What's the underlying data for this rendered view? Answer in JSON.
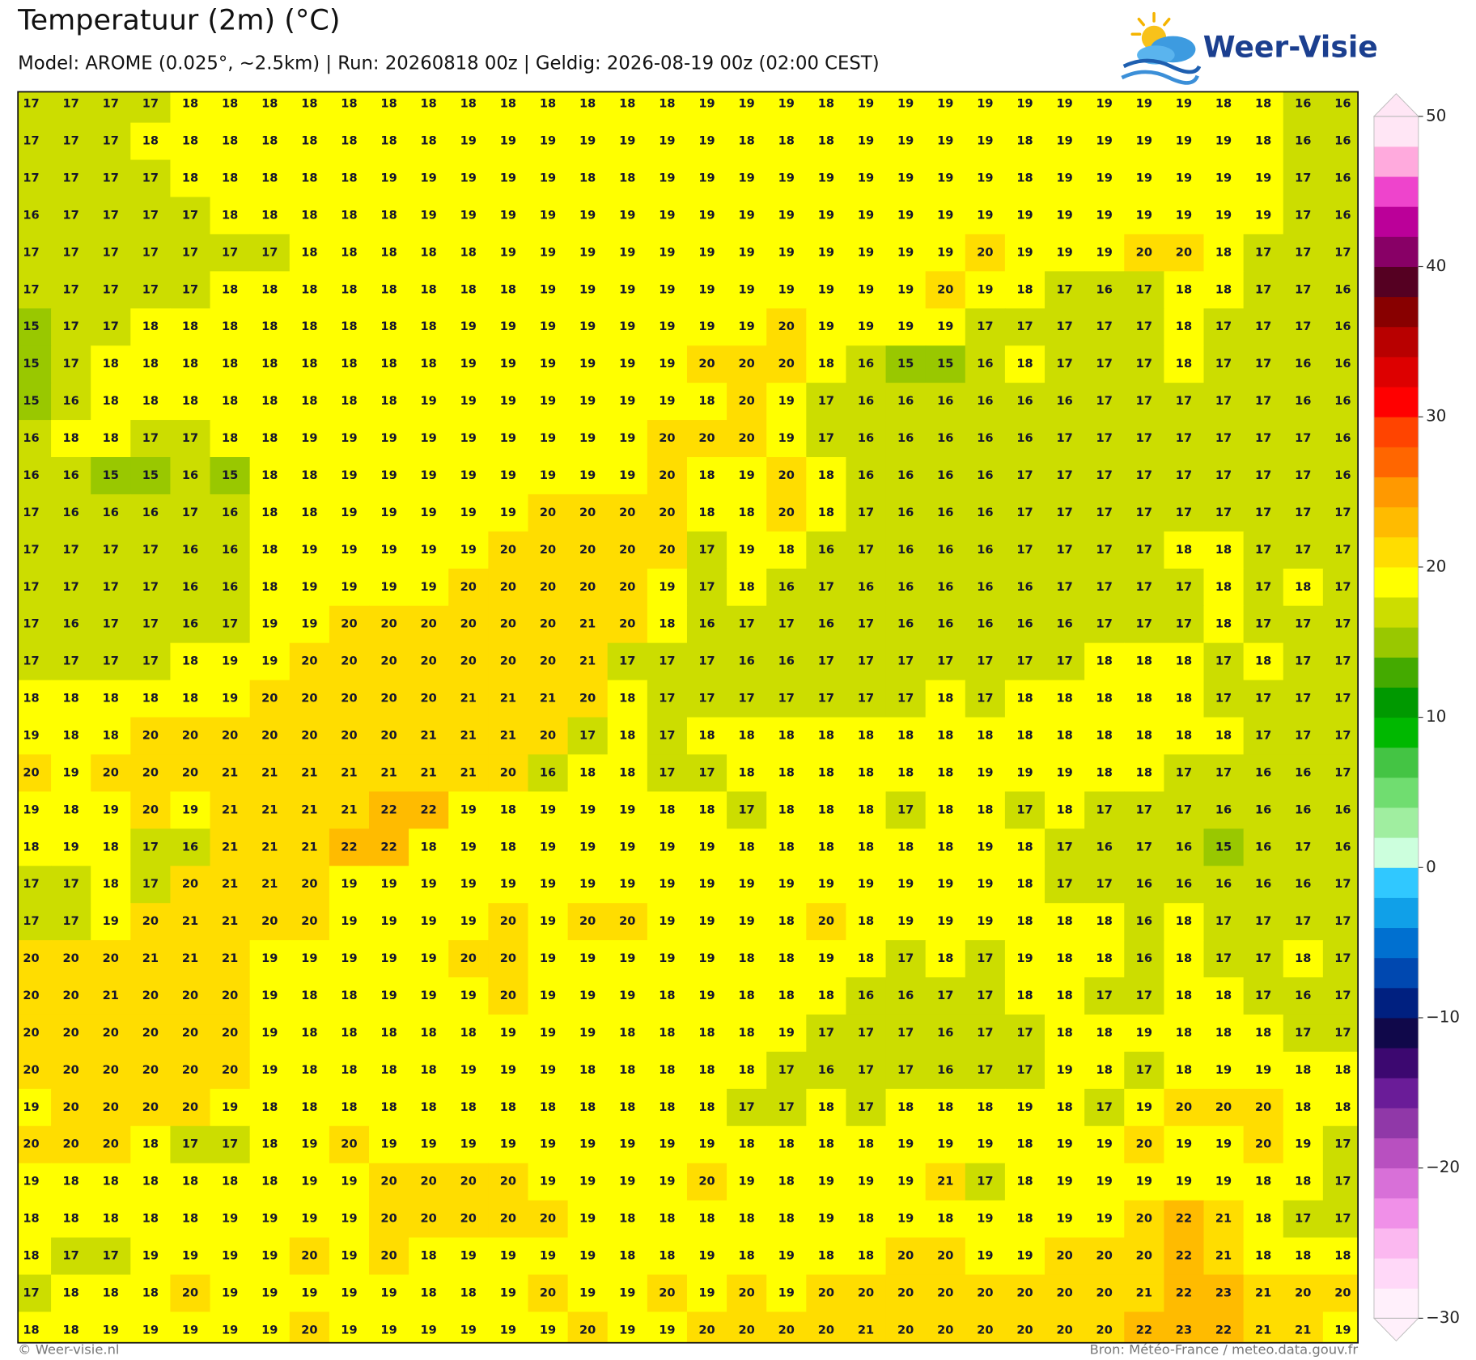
{
  "header": {
    "title": "Temperatuur (2m) (°C)",
    "subtitle": "Model: AROME (0.025°, ~2.5km)  |  Run: 20260818 00z  |  Geldig: 2026-08-19 00z (02:00 CEST)"
  },
  "logo": "Weer-Visie",
  "map": {
    "rows": [
      [
        17,
        17,
        17,
        17,
        18,
        18,
        18,
        18,
        18,
        18,
        18,
        18,
        18,
        18,
        18,
        18,
        18,
        19,
        19,
        19,
        18,
        19,
        19,
        19,
        19,
        19,
        19,
        19,
        19,
        19,
        18,
        18,
        16,
        16
      ],
      [
        17,
        17,
        17,
        18,
        18,
        18,
        18,
        18,
        18,
        18,
        18,
        19,
        19,
        19,
        19,
        19,
        19,
        19,
        18,
        18,
        18,
        19,
        19,
        19,
        19,
        18,
        19,
        19,
        19,
        19,
        19,
        18,
        16,
        16
      ],
      [
        17,
        17,
        17,
        17,
        18,
        18,
        18,
        18,
        18,
        19,
        19,
        19,
        19,
        19,
        18,
        18,
        19,
        19,
        19,
        19,
        19,
        19,
        19,
        19,
        19,
        18,
        19,
        19,
        19,
        19,
        19,
        19,
        17,
        16
      ],
      [
        16,
        17,
        17,
        17,
        17,
        18,
        18,
        18,
        18,
        18,
        19,
        19,
        19,
        19,
        19,
        19,
        19,
        19,
        19,
        19,
        19,
        19,
        19,
        19,
        19,
        19,
        19,
        19,
        19,
        19,
        19,
        19,
        17,
        16
      ],
      [
        17,
        17,
        17,
        17,
        17,
        17,
        17,
        18,
        18,
        18,
        18,
        18,
        19,
        19,
        19,
        19,
        19,
        19,
        19,
        19,
        19,
        19,
        19,
        19,
        20,
        19,
        19,
        19,
        20,
        20,
        18,
        17,
        17,
        17
      ],
      [
        17,
        17,
        17,
        17,
        17,
        18,
        18,
        18,
        18,
        18,
        18,
        18,
        18,
        19,
        19,
        19,
        19,
        19,
        19,
        19,
        19,
        19,
        19,
        20,
        19,
        18,
        17,
        16,
        17,
        18,
        18,
        17,
        17,
        16
      ],
      [
        15,
        17,
        17,
        18,
        18,
        18,
        18,
        18,
        18,
        18,
        18,
        19,
        19,
        19,
        19,
        19,
        19,
        19,
        19,
        20,
        19,
        19,
        19,
        19,
        17,
        17,
        17,
        17,
        17,
        18,
        17,
        17,
        17,
        16
      ],
      [
        15,
        17,
        18,
        18,
        18,
        18,
        18,
        18,
        18,
        18,
        18,
        19,
        19,
        19,
        19,
        19,
        19,
        20,
        20,
        20,
        18,
        16,
        15,
        15,
        16,
        18,
        17,
        17,
        17,
        18,
        17,
        17,
        16,
        16
      ],
      [
        15,
        16,
        18,
        18,
        18,
        18,
        18,
        18,
        18,
        18,
        19,
        19,
        19,
        19,
        19,
        19,
        19,
        18,
        20,
        19,
        17,
        16,
        16,
        16,
        16,
        16,
        16,
        17,
        17,
        17,
        17,
        17,
        16,
        16
      ],
      [
        16,
        18,
        18,
        17,
        17,
        18,
        18,
        19,
        19,
        19,
        19,
        19,
        19,
        19,
        19,
        19,
        20,
        20,
        20,
        19,
        17,
        16,
        16,
        16,
        16,
        16,
        17,
        17,
        17,
        17,
        17,
        17,
        17,
        16
      ],
      [
        16,
        16,
        15,
        15,
        16,
        15,
        18,
        18,
        19,
        19,
        19,
        19,
        19,
        19,
        19,
        19,
        20,
        18,
        19,
        20,
        18,
        16,
        16,
        16,
        16,
        17,
        17,
        17,
        17,
        17,
        17,
        17,
        17,
        16
      ],
      [
        17,
        16,
        16,
        16,
        17,
        16,
        18,
        18,
        19,
        19,
        19,
        19,
        19,
        20,
        20,
        20,
        20,
        18,
        18,
        20,
        18,
        17,
        16,
        16,
        16,
        17,
        17,
        17,
        17,
        17,
        17,
        17,
        17,
        17
      ],
      [
        17,
        17,
        17,
        17,
        16,
        16,
        18,
        19,
        19,
        19,
        19,
        19,
        20,
        20,
        20,
        20,
        20,
        17,
        19,
        18,
        16,
        17,
        16,
        16,
        16,
        17,
        17,
        17,
        17,
        18,
        18,
        17,
        17,
        17
      ],
      [
        17,
        17,
        17,
        17,
        16,
        16,
        18,
        19,
        19,
        19,
        19,
        20,
        20,
        20,
        20,
        20,
        19,
        17,
        18,
        16,
        17,
        16,
        16,
        16,
        16,
        16,
        17,
        17,
        17,
        17,
        18,
        17,
        18,
        17
      ],
      [
        17,
        16,
        17,
        17,
        16,
        17,
        19,
        19,
        20,
        20,
        20,
        20,
        20,
        20,
        21,
        20,
        18,
        16,
        17,
        17,
        16,
        17,
        16,
        16,
        16,
        16,
        16,
        17,
        17,
        17,
        18,
        17,
        17,
        17
      ],
      [
        17,
        17,
        17,
        17,
        18,
        19,
        19,
        20,
        20,
        20,
        20,
        20,
        20,
        20,
        21,
        17,
        17,
        17,
        16,
        16,
        17,
        17,
        17,
        17,
        17,
        17,
        17,
        18,
        18,
        18,
        17,
        18,
        17,
        17
      ],
      [
        18,
        18,
        18,
        18,
        18,
        19,
        20,
        20,
        20,
        20,
        20,
        21,
        21,
        21,
        20,
        18,
        17,
        17,
        17,
        17,
        17,
        17,
        17,
        18,
        17,
        18,
        18,
        18,
        18,
        18,
        17,
        17,
        17,
        17
      ],
      [
        19,
        18,
        18,
        20,
        20,
        20,
        20,
        20,
        20,
        20,
        21,
        21,
        21,
        20,
        17,
        18,
        17,
        18,
        18,
        18,
        18,
        18,
        18,
        18,
        18,
        18,
        18,
        18,
        18,
        18,
        18,
        17,
        17,
        17
      ],
      [
        20,
        19,
        20,
        20,
        20,
        21,
        21,
        21,
        21,
        21,
        21,
        21,
        20,
        16,
        18,
        18,
        17,
        17,
        18,
        18,
        18,
        18,
        18,
        18,
        19,
        19,
        19,
        18,
        18,
        17,
        17,
        16,
        16,
        17
      ],
      [
        19,
        18,
        19,
        20,
        19,
        21,
        21,
        21,
        21,
        22,
        22,
        19,
        18,
        19,
        19,
        19,
        18,
        18,
        17,
        18,
        18,
        18,
        17,
        18,
        18,
        17,
        18,
        17,
        17,
        17,
        16,
        16,
        16,
        16
      ],
      [
        18,
        19,
        18,
        17,
        16,
        21,
        21,
        21,
        22,
        22,
        18,
        19,
        18,
        19,
        19,
        19,
        19,
        19,
        18,
        18,
        18,
        18,
        18,
        18,
        19,
        18,
        17,
        16,
        17,
        16,
        15,
        16,
        17,
        16
      ],
      [
        17,
        17,
        18,
        17,
        20,
        21,
        21,
        20,
        19,
        19,
        19,
        19,
        19,
        19,
        19,
        19,
        19,
        19,
        19,
        19,
        19,
        19,
        19,
        19,
        19,
        18,
        17,
        17,
        16,
        16,
        16,
        16,
        16,
        17
      ],
      [
        17,
        17,
        19,
        20,
        21,
        21,
        20,
        20,
        19,
        19,
        19,
        19,
        20,
        19,
        20,
        20,
        19,
        19,
        19,
        18,
        20,
        18,
        19,
        19,
        19,
        18,
        18,
        18,
        16,
        18,
        17,
        17,
        17,
        17
      ],
      [
        20,
        20,
        20,
        21,
        21,
        21,
        19,
        19,
        19,
        19,
        19,
        20,
        20,
        19,
        19,
        19,
        19,
        19,
        18,
        18,
        19,
        18,
        17,
        18,
        17,
        19,
        18,
        18,
        16,
        18,
        17,
        17,
        18,
        17
      ],
      [
        20,
        20,
        21,
        20,
        20,
        20,
        19,
        18,
        18,
        19,
        19,
        19,
        20,
        19,
        19,
        19,
        18,
        19,
        18,
        18,
        18,
        16,
        16,
        17,
        17,
        18,
        18,
        17,
        17,
        18,
        18,
        17,
        16,
        17
      ],
      [
        20,
        20,
        20,
        20,
        20,
        20,
        19,
        18,
        18,
        18,
        18,
        18,
        19,
        19,
        19,
        18,
        18,
        18,
        18,
        19,
        17,
        17,
        17,
        16,
        17,
        17,
        18,
        18,
        19,
        18,
        18,
        18,
        17,
        17
      ],
      [
        20,
        20,
        20,
        20,
        20,
        20,
        19,
        18,
        18,
        18,
        18,
        19,
        19,
        19,
        18,
        18,
        18,
        18,
        18,
        17,
        16,
        17,
        17,
        16,
        17,
        17,
        19,
        18,
        17,
        18,
        19,
        19,
        18,
        18
      ],
      [
        19,
        20,
        20,
        20,
        20,
        19,
        18,
        18,
        18,
        18,
        18,
        18,
        18,
        18,
        18,
        18,
        18,
        18,
        17,
        17,
        18,
        17,
        18,
        18,
        18,
        19,
        18,
        17,
        19,
        20,
        20,
        20,
        18,
        18
      ],
      [
        20,
        20,
        20,
        18,
        17,
        17,
        18,
        19,
        20,
        19,
        19,
        19,
        19,
        19,
        19,
        19,
        19,
        19,
        18,
        18,
        18,
        18,
        19,
        19,
        19,
        18,
        19,
        19,
        20,
        19,
        19,
        20,
        19,
        17
      ],
      [
        19,
        18,
        18,
        18,
        18,
        18,
        18,
        19,
        19,
        20,
        20,
        20,
        20,
        19,
        19,
        19,
        19,
        20,
        19,
        18,
        19,
        19,
        19,
        21,
        17,
        18,
        19,
        19,
        19,
        19,
        19,
        18,
        18,
        17
      ],
      [
        18,
        18,
        18,
        18,
        18,
        19,
        19,
        19,
        19,
        20,
        20,
        20,
        20,
        20,
        19,
        18,
        18,
        18,
        18,
        18,
        19,
        18,
        19,
        18,
        19,
        18,
        19,
        19,
        20,
        22,
        21,
        18,
        17,
        17
      ],
      [
        18,
        17,
        17,
        19,
        19,
        19,
        19,
        20,
        19,
        20,
        18,
        19,
        19,
        19,
        19,
        18,
        18,
        19,
        18,
        19,
        18,
        18,
        20,
        20,
        19,
        19,
        20,
        20,
        20,
        22,
        21,
        18,
        18,
        18
      ],
      [
        17,
        18,
        18,
        18,
        20,
        19,
        19,
        19,
        19,
        19,
        18,
        18,
        19,
        20,
        19,
        19,
        20,
        19,
        20,
        19,
        20,
        20,
        20,
        20,
        20,
        20,
        20,
        20,
        21,
        22,
        23,
        21,
        20,
        20
      ],
      [
        18,
        18,
        19,
        19,
        19,
        19,
        19,
        20,
        19,
        19,
        19,
        19,
        19,
        19,
        20,
        19,
        19,
        20,
        20,
        20,
        20,
        21,
        20,
        20,
        20,
        20,
        20,
        20,
        22,
        23,
        22,
        21,
        21,
        19
      ]
    ]
  },
  "colorbar": {
    "lim": [
      -30,
      50
    ],
    "ticks": [
      {
        "value": -30,
        "label": "−30"
      },
      {
        "value": -20,
        "label": "−20"
      },
      {
        "value": -10,
        "label": "−10"
      },
      0,
      10,
      20,
      30,
      40,
      50
    ],
    "colors": [
      "#fff0fb",
      "#ffd8f8",
      "#fbb8f0",
      "#f090e8",
      "#d870d8",
      "#b850c0",
      "#9038a8",
      "#6a1c98",
      "#3c0870",
      "#10084a",
      "#002080",
      "#0048b0",
      "#0070d0",
      "#10a0e8",
      "#30c8ff",
      "#ccffdd",
      "#a0eea0",
      "#70dd70",
      "#44c444",
      "#00b800",
      "#009900",
      "#44aa00",
      "#99c800",
      "#ccdd00",
      "#ffff00",
      "#ffdd00",
      "#ffbb00",
      "#ff9900",
      "#ff6600",
      "#ff4400",
      "#ff0000",
      "#dd0000",
      "#b80000",
      "#880000",
      "#550022",
      "#880066",
      "#bb0099",
      "#ee44cc",
      "#ffaadd",
      "#ffe6f5"
    ]
  },
  "footer": {
    "left": "© Weer-visie.nl",
    "right": "Bron: Météo-France / meteo.data.gouv.fr"
  }
}
